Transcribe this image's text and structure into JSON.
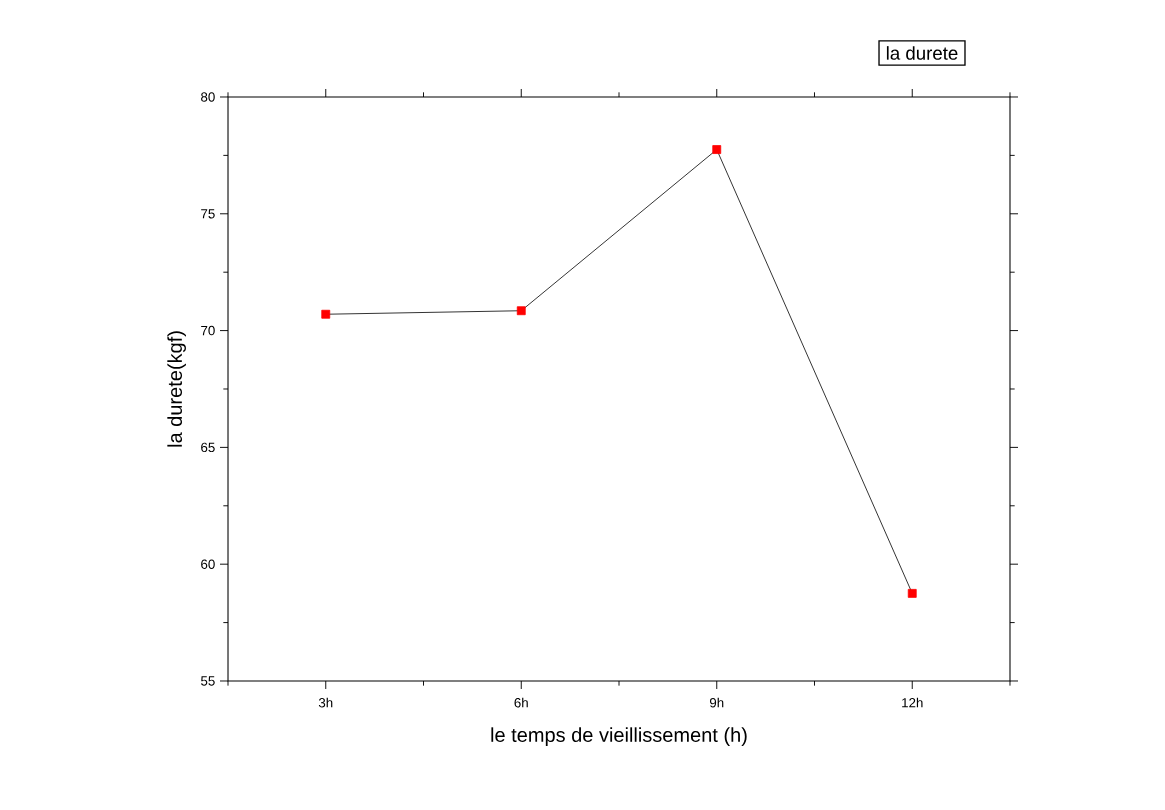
{
  "chart_data": {
    "type": "line",
    "xlabel": "le temps de vieillissement (h)",
    "ylabel": "la durete(kgf)",
    "annotations": [
      "la durete"
    ],
    "categories": [
      "3h",
      "6h",
      "9h",
      "12h"
    ],
    "series": [
      {
        "color": "#ff0000",
        "values": [
          70.7,
          70.85,
          77.75,
          58.75
        ]
      }
    ],
    "ylim": [
      55,
      80
    ],
    "yticks": [
      55,
      60,
      65,
      70,
      75,
      80
    ],
    "marker": "square",
    "line_style": "solid"
  }
}
